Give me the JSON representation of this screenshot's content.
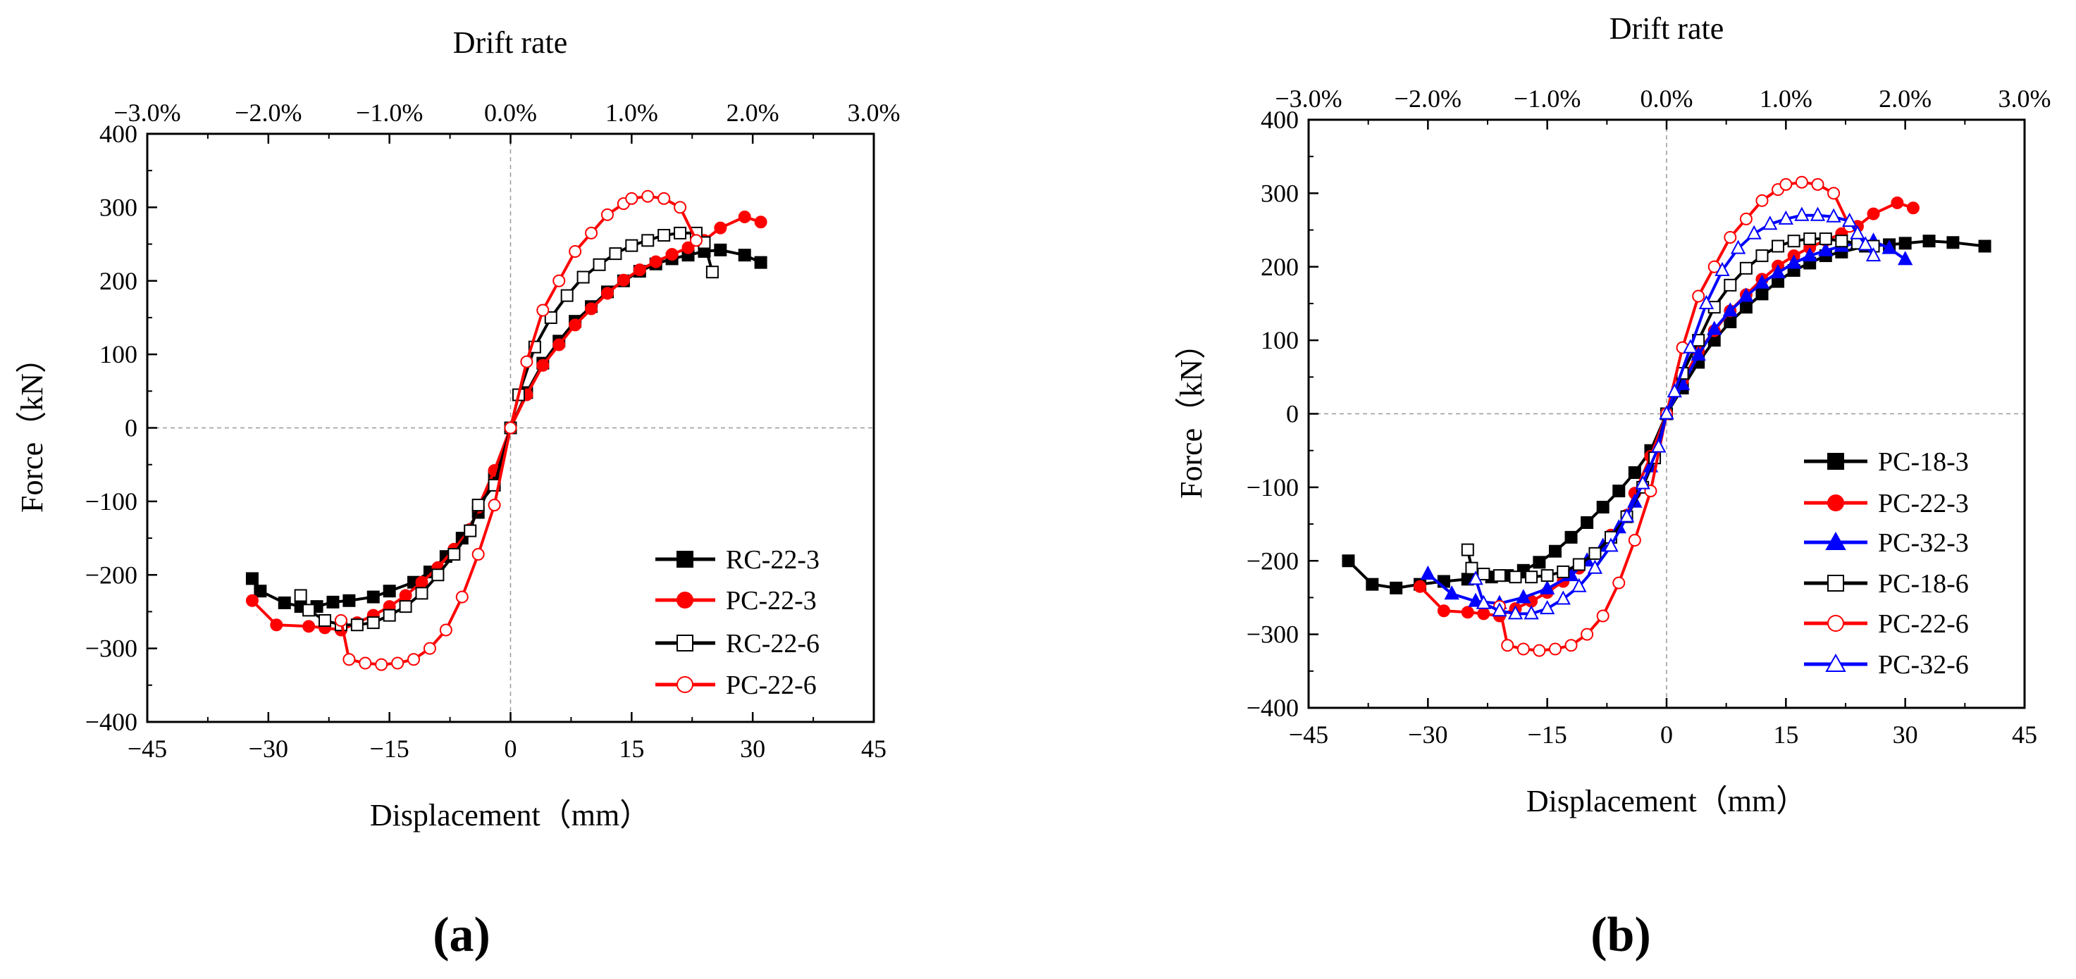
{
  "chart_data": [
    {
      "type": "line",
      "panel_label": "(a)",
      "xlabel": "Displacement（mm）",
      "ylabel": "Force（kN）",
      "top_axis_label": "Drift rate",
      "xlim": [
        -45,
        45
      ],
      "ylim": [
        -400,
        400
      ],
      "xticks": [
        "−45",
        "−30",
        "−15",
        "0",
        "15",
        "30",
        "45"
      ],
      "xtick_values": [
        -45,
        -30,
        -15,
        0,
        15,
        30,
        45
      ],
      "yticks": [
        "400",
        "300",
        "200",
        "100",
        "0",
        "−100",
        "−200",
        "−300",
        "−400"
      ],
      "ytick_values": [
        400,
        300,
        200,
        100,
        0,
        -100,
        -200,
        -300,
        -400
      ],
      "top_ticks": [
        "−3.0%",
        "−2.0%",
        "−1.0%",
        "0.0%",
        "1.0%",
        "2.0%",
        "3.0%"
      ],
      "top_tick_values": [
        -3,
        -2,
        -1,
        0,
        1,
        2,
        3
      ],
      "top_scale_mm_per_percent": 15,
      "legend_position": "bottom-right",
      "series": [
        {
          "name": "RC-22-3",
          "color": "#000000",
          "marker": "square",
          "filled": true,
          "x": [
            -32,
            -31,
            -28,
            -26,
            -24,
            -22,
            -20,
            -17,
            -15,
            -12,
            -10,
            -8,
            -6,
            -4,
            -2,
            0,
            2,
            4,
            6,
            8,
            10,
            12,
            14,
            16,
            18,
            20,
            22,
            24,
            26,
            29,
            31
          ],
          "y": [
            -205,
            -222,
            -238,
            -243,
            -243,
            -237,
            -235,
            -230,
            -222,
            -210,
            -196,
            -175,
            -150,
            -115,
            -65,
            0,
            48,
            88,
            118,
            145,
            165,
            185,
            200,
            213,
            223,
            230,
            235,
            240,
            242,
            235,
            225
          ]
        },
        {
          "name": "PC-22-3",
          "color": "#ff0000",
          "marker": "circle",
          "filled": true,
          "x": [
            -32,
            -29,
            -25,
            -23,
            -21,
            -19,
            -17,
            -15,
            -13,
            -11,
            -9,
            -7,
            -5,
            -4,
            -2,
            0,
            2,
            4,
            6,
            8,
            10,
            12,
            14,
            16,
            18,
            20,
            22,
            24,
            26,
            29,
            31
          ],
          "y": [
            -235,
            -268,
            -270,
            -272,
            -275,
            -265,
            -255,
            -243,
            -228,
            -210,
            -190,
            -165,
            -138,
            -108,
            -58,
            0,
            45,
            85,
            113,
            140,
            162,
            183,
            201,
            215,
            226,
            236,
            245,
            255,
            272,
            287,
            280
          ]
        },
        {
          "name": "RC-22-6",
          "color": "#000000",
          "marker": "square",
          "filled": false,
          "x": [
            -26,
            -25,
            -23,
            -21,
            -19,
            -17,
            -15,
            -13,
            -11,
            -9,
            -7,
            -5,
            -4,
            -2,
            0,
            1,
            3,
            5,
            7,
            9,
            11,
            13,
            15,
            17,
            19,
            21,
            23,
            24,
            25
          ],
          "y": [
            -228,
            -248,
            -262,
            -268,
            -268,
            -265,
            -255,
            -243,
            -225,
            -200,
            -172,
            -140,
            -105,
            -78,
            0,
            45,
            110,
            150,
            180,
            205,
            222,
            237,
            248,
            255,
            262,
            265,
            265,
            252,
            212
          ]
        },
        {
          "name": "PC-22-6",
          "color": "#ff0000",
          "marker": "circle",
          "filled": false,
          "x": [
            -21,
            -20,
            -18,
            -16,
            -14,
            -12,
            -10,
            -8,
            -6,
            -4,
            -2,
            0,
            2,
            4,
            6,
            8,
            10,
            12,
            14,
            15,
            17,
            19,
            21,
            23
          ],
          "y": [
            -262,
            -315,
            -320,
            -322,
            -320,
            -315,
            -300,
            -275,
            -230,
            -172,
            -105,
            0,
            90,
            160,
            200,
            240,
            265,
            290,
            305,
            312,
            315,
            312,
            300,
            255
          ]
        }
      ]
    },
    {
      "type": "line",
      "panel_label": "(b)",
      "xlabel": "Displacement（mm）",
      "ylabel": "Force（kN）",
      "top_axis_label": "Drift rate",
      "xlim": [
        -45,
        45
      ],
      "ylim": [
        -400,
        400
      ],
      "xticks": [
        "−45",
        "−30",
        "−15",
        "0",
        "15",
        "30",
        "45"
      ],
      "xtick_values": [
        -45,
        -30,
        -15,
        0,
        15,
        30,
        45
      ],
      "yticks": [
        "400",
        "300",
        "200",
        "100",
        "0",
        "−100",
        "−200",
        "−300",
        "−400"
      ],
      "ytick_values": [
        400,
        300,
        200,
        100,
        0,
        -100,
        -200,
        -300,
        -400
      ],
      "top_ticks": [
        "−3.0%",
        "−2.0%",
        "−1.0%",
        "0.0%",
        "1.0%",
        "2.0%",
        "3.0%"
      ],
      "top_tick_values": [
        -3,
        -2,
        -1,
        0,
        1,
        2,
        3
      ],
      "top_scale_mm_per_percent": 15,
      "legend_position": "bottom-right",
      "series": [
        {
          "name": "PC-18-3",
          "color": "#000000",
          "marker": "square",
          "filled": true,
          "x": [
            -40,
            -37,
            -34,
            -31,
            -28,
            -25,
            -22,
            -20,
            -18,
            -16,
            -14,
            -12,
            -10,
            -8,
            -6,
            -4,
            -2,
            0,
            2,
            4,
            6,
            8,
            10,
            12,
            14,
            16,
            18,
            20,
            22,
            25,
            28,
            30,
            33,
            36,
            40
          ],
          "y": [
            -200,
            -232,
            -237,
            -232,
            -228,
            -225,
            -222,
            -220,
            -213,
            -202,
            -187,
            -168,
            -148,
            -127,
            -105,
            -80,
            -50,
            0,
            35,
            70,
            100,
            125,
            145,
            163,
            180,
            195,
            205,
            215,
            220,
            228,
            230,
            232,
            235,
            233,
            228
          ]
        },
        {
          "name": "PC-22-3",
          "color": "#ff0000",
          "marker": "circle",
          "filled": true,
          "x": [
            -31,
            -28,
            -25,
            -23,
            -21,
            -19,
            -17,
            -15,
            -13,
            -11,
            -9,
            -7,
            -5,
            -4,
            -2,
            0,
            2,
            4,
            6,
            8,
            10,
            12,
            14,
            16,
            18,
            20,
            22,
            24,
            26,
            29,
            31
          ],
          "y": [
            -235,
            -268,
            -270,
            -272,
            -275,
            -265,
            -255,
            -243,
            -228,
            -210,
            -190,
            -165,
            -138,
            -108,
            -58,
            0,
            45,
            85,
            113,
            140,
            162,
            183,
            201,
            215,
            226,
            236,
            245,
            255,
            272,
            287,
            280
          ]
        },
        {
          "name": "PC-32-3",
          "color": "#0000ff",
          "marker": "triangle",
          "filled": true,
          "x": [
            -30,
            -27,
            -24,
            -21,
            -18,
            -15,
            -12,
            -10,
            -8,
            -6,
            -4,
            -2,
            0,
            2,
            4,
            6,
            8,
            10,
            12,
            14,
            16,
            18,
            20,
            22,
            24,
            26,
            28,
            30
          ],
          "y": [
            -218,
            -245,
            -255,
            -258,
            -250,
            -238,
            -220,
            -200,
            -180,
            -155,
            -120,
            -72,
            0,
            40,
            80,
            115,
            140,
            160,
            178,
            192,
            205,
            215,
            222,
            228,
            232,
            235,
            225,
            210
          ]
        },
        {
          "name": "PC-18-6",
          "color": "#000000",
          "marker": "square",
          "filled": false,
          "x": [
            -25,
            -24.5,
            -23,
            -21,
            -19,
            -17,
            -15,
            -13,
            -11,
            -9,
            -7,
            -5,
            -3,
            -1.5,
            0,
            2,
            4,
            6,
            8,
            10,
            12,
            14,
            16,
            18,
            20,
            22,
            24,
            26
          ],
          "y": [
            -185,
            -210,
            -218,
            -220,
            -222,
            -222,
            -220,
            -215,
            -205,
            -190,
            -168,
            -140,
            -100,
            -60,
            0,
            55,
            100,
            145,
            175,
            198,
            215,
            228,
            235,
            238,
            238,
            235,
            232,
            228
          ]
        },
        {
          "name": "PC-22-6",
          "color": "#ff0000",
          "marker": "circle",
          "filled": false,
          "x": [
            -21,
            -20,
            -18,
            -16,
            -14,
            -12,
            -10,
            -8,
            -6,
            -4,
            -2,
            0,
            2,
            4,
            6,
            8,
            10,
            12,
            14,
            15,
            17,
            19,
            21,
            23
          ],
          "y": [
            -262,
            -315,
            -320,
            -322,
            -320,
            -315,
            -300,
            -275,
            -230,
            -172,
            -105,
            0,
            90,
            160,
            200,
            240,
            265,
            290,
            305,
            312,
            315,
            312,
            300,
            255
          ]
        },
        {
          "name": "PC-32-6",
          "color": "#0000ff",
          "marker": "triangle",
          "filled": false,
          "x": [
            -24,
            -23,
            -21,
            -19,
            -17,
            -15,
            -13,
            -11,
            -9,
            -7,
            -5,
            -3,
            -1,
            0,
            1,
            3,
            5,
            7,
            9,
            11,
            13,
            15,
            17,
            19,
            21,
            23,
            24,
            25,
            26
          ],
          "y": [
            -225,
            -258,
            -268,
            -272,
            -272,
            -265,
            -252,
            -235,
            -210,
            -180,
            -140,
            -95,
            -45,
            0,
            30,
            90,
            150,
            195,
            225,
            245,
            258,
            265,
            270,
            270,
            268,
            262,
            245,
            230,
            215
          ]
        }
      ]
    }
  ]
}
